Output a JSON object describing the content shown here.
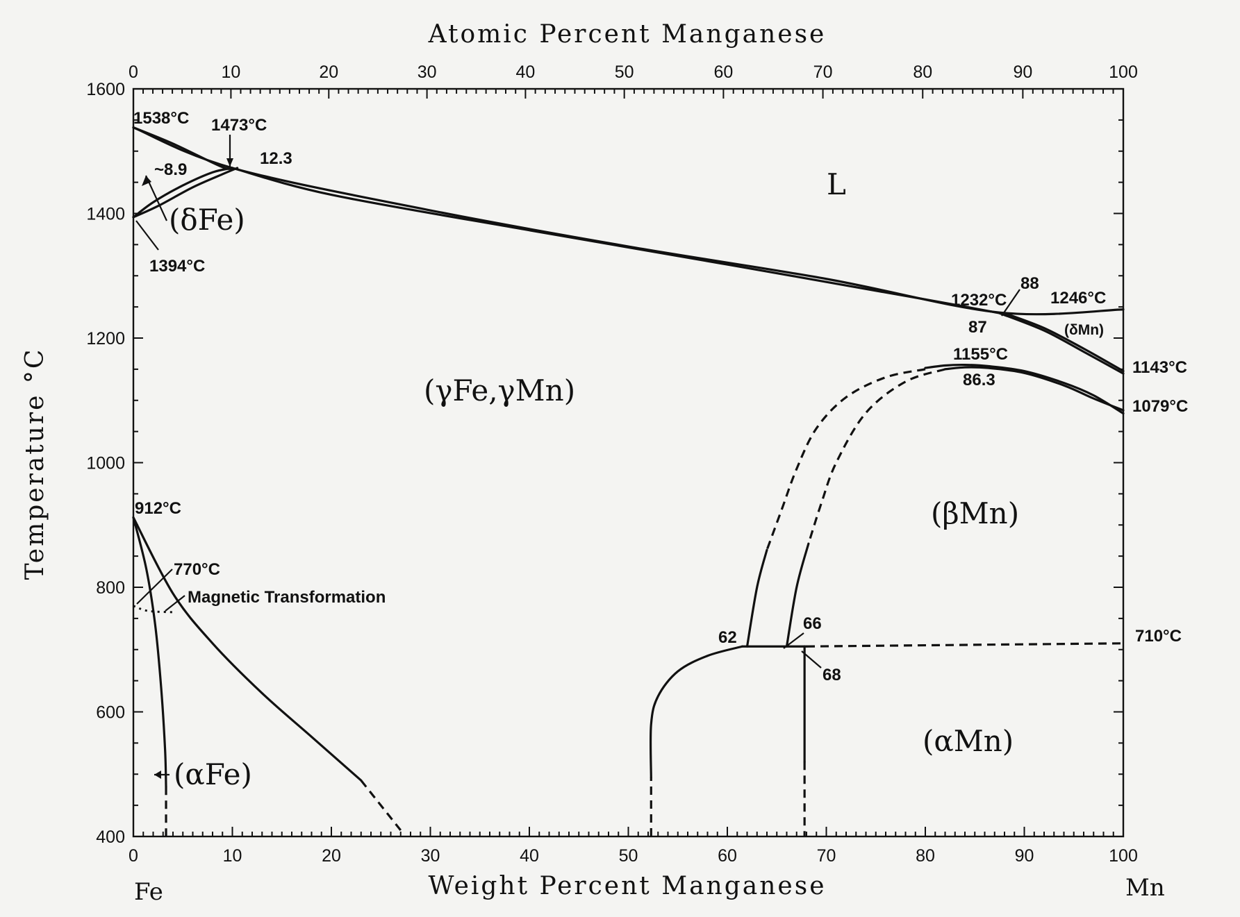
{
  "chart_data": {
    "type": "line",
    "title": "",
    "xlabel": "Weight Percent Manganese",
    "x2label": "Atomic Percent Manganese",
    "ylabel": "Temperature °C",
    "xlim": [
      0,
      100
    ],
    "ylim": [
      400,
      1600
    ],
    "x_ticks": [
      0,
      10,
      20,
      30,
      40,
      50,
      60,
      70,
      80,
      90,
      100
    ],
    "x2_ticks": [
      0,
      10,
      20,
      30,
      40,
      50,
      60,
      70,
      80,
      90,
      100
    ],
    "y_ticks": [
      400,
      600,
      800,
      1000,
      1200,
      1400,
      1600
    ],
    "left_element": "Fe",
    "right_element": "Mn",
    "phase_labels": [
      {
        "id": "liquid",
        "text": "L",
        "x": 71,
        "y": 1440
      },
      {
        "id": "delta-fe",
        "text": "(δFe)",
        "x": 7,
        "y": 1385
      },
      {
        "id": "gamma",
        "text": "(γFe,γMn)",
        "x": 37,
        "y": 1110
      },
      {
        "id": "beta-mn",
        "text": "(βMn)",
        "x": 85,
        "y": 905
      },
      {
        "id": "alpha-mn",
        "text": "(αMn)",
        "x": 84,
        "y": 545
      },
      {
        "id": "alpha-fe",
        "text": "(αFe)",
        "x": 8,
        "y": 500
      },
      {
        "id": "delta-mn",
        "text": "(δMn)",
        "x": 96.5,
        "y": 1212
      }
    ],
    "annotations": [
      {
        "id": "t1538",
        "text": "1538°C"
      },
      {
        "id": "t1473",
        "text": "1473°C"
      },
      {
        "id": "c12-3",
        "text": "12.3"
      },
      {
        "id": "c8-9",
        "text": "~8.9"
      },
      {
        "id": "t1394",
        "text": "1394°C"
      },
      {
        "id": "t1232",
        "text": "1232°C"
      },
      {
        "id": "c88",
        "text": "88"
      },
      {
        "id": "t1246",
        "text": "1246°C"
      },
      {
        "id": "c87",
        "text": "87"
      },
      {
        "id": "t1155",
        "text": "1155°C"
      },
      {
        "id": "c86-3",
        "text": "86.3"
      },
      {
        "id": "t1143",
        "text": "1143°C"
      },
      {
        "id": "t1079",
        "text": "1079°C"
      },
      {
        "id": "t912",
        "text": "912°C"
      },
      {
        "id": "t770",
        "text": "770°C"
      },
      {
        "id": "magnetic",
        "text": "Magnetic Transformation"
      },
      {
        "id": "c62",
        "text": "62"
      },
      {
        "id": "c66",
        "text": "66"
      },
      {
        "id": "c68",
        "text": "68"
      },
      {
        "id": "t710",
        "text": "710°C"
      }
    ],
    "series": [
      {
        "id": "liquidus",
        "style": "solid",
        "points": [
          [
            0,
            1538
          ],
          [
            10,
            1473
          ],
          [
            30,
            1405
          ],
          [
            50,
            1347
          ],
          [
            70,
            1295
          ],
          [
            87.5,
            1241
          ],
          [
            100,
            1246
          ]
        ]
      },
      {
        "id": "gamma-solidus",
        "style": "solid",
        "points": [
          [
            10,
            1473
          ],
          [
            20,
            1430
          ],
          [
            40,
            1373
          ],
          [
            60,
            1318
          ],
          [
            80,
            1262
          ],
          [
            87.5,
            1240
          ]
        ]
      },
      {
        "id": "delta-fe-liquidus-side",
        "style": "solid",
        "points": [
          [
            0,
            1538
          ],
          [
            4,
            1512
          ],
          [
            8.9,
            1475
          ],
          [
            10,
            1473
          ]
        ]
      },
      {
        "id": "delta-fe-solvus-upper",
        "style": "solid",
        "points": [
          [
            0,
            1394
          ],
          [
            2,
            1418
          ],
          [
            5,
            1445
          ],
          [
            8,
            1466
          ],
          [
            10,
            1473
          ]
        ]
      },
      {
        "id": "delta-fe-solvus-lower",
        "style": "solid",
        "points": [
          [
            0,
            1394
          ],
          [
            2.5,
            1412
          ],
          [
            6,
            1442
          ],
          [
            9,
            1463
          ],
          [
            10.5,
            1473
          ]
        ]
      },
      {
        "id": "delta-mn-solvus",
        "style": "solid",
        "points": [
          [
            87.5,
            1240
          ],
          [
            92,
            1212
          ],
          [
            96,
            1178
          ],
          [
            100,
            1143
          ]
        ]
      },
      {
        "id": "delta-mn-solvus-2",
        "style": "solid",
        "points": [
          [
            88,
            1240
          ],
          [
            92,
            1216
          ],
          [
            96,
            1183
          ],
          [
            100,
            1147
          ]
        ]
      },
      {
        "id": "beta-dome-upper",
        "style": "solid",
        "points": [
          [
            80,
            1152
          ],
          [
            82,
            1156
          ],
          [
            84,
            1157
          ],
          [
            86.3,
            1155
          ],
          [
            90,
            1147
          ],
          [
            94,
            1128
          ],
          [
            97,
            1108
          ],
          [
            100,
            1079
          ]
        ]
      },
      {
        "id": "beta-dome-lower",
        "style": "solid",
        "points": [
          [
            82,
            1150
          ],
          [
            84,
            1153
          ],
          [
            86.3,
            1152
          ],
          [
            90,
            1144
          ],
          [
            94,
            1124
          ],
          [
            97,
            1103
          ],
          [
            100,
            1084
          ]
        ]
      },
      {
        "id": "beta-boundary-left-dashed",
        "style": "dashed",
        "points": [
          [
            80,
            1150
          ],
          [
            76,
            1137
          ],
          [
            72,
            1105
          ],
          [
            69,
            1055
          ],
          [
            67,
            990
          ],
          [
            65.5,
            925
          ],
          [
            64,
            860
          ]
        ]
      },
      {
        "id": "beta-boundary-left",
        "style": "solid",
        "points": [
          [
            64,
            860
          ],
          [
            63,
            800
          ],
          [
            62,
            705
          ]
        ]
      },
      {
        "id": "beta-boundary-right-dashed",
        "style": "dashed",
        "points": [
          [
            82,
            1150
          ],
          [
            78,
            1130
          ],
          [
            74,
            1080
          ],
          [
            71,
            1000
          ],
          [
            69.5,
            935
          ],
          [
            68.2,
            870
          ]
        ]
      },
      {
        "id": "beta-boundary-right",
        "style": "solid",
        "points": [
          [
            68.2,
            870
          ],
          [
            67,
            800
          ],
          [
            66,
            705
          ]
        ]
      },
      {
        "id": "eutectoid-710",
        "style": "solid",
        "points": [
          [
            61.5,
            705
          ],
          [
            68,
            705
          ]
        ]
      },
      {
        "id": "alpha-mn-wavy",
        "style": "dashed",
        "points": [
          [
            68,
            705
          ],
          [
            100,
            710
          ]
        ]
      },
      {
        "id": "alpha-mn-solvus-left",
        "style": "solid",
        "points": [
          [
            52.3,
            495
          ],
          [
            52.3,
            580
          ],
          [
            53,
            625
          ],
          [
            55,
            665
          ],
          [
            58,
            690
          ],
          [
            61.5,
            705
          ]
        ]
      },
      {
        "id": "alpha-mn-solvus-left-dashed",
        "style": "dashed",
        "points": [
          [
            52.3,
            400
          ],
          [
            52.3,
            495
          ]
        ]
      },
      {
        "id": "alpha-mn-right",
        "style": "solid",
        "points": [
          [
            67.8,
            705
          ],
          [
            67.8,
            520
          ]
        ]
      },
      {
        "id": "alpha-mn-right-dashed",
        "style": "dashed",
        "points": [
          [
            67.8,
            520
          ],
          [
            67.8,
            400
          ]
        ]
      },
      {
        "id": "alpha-fe-solvus",
        "style": "solid",
        "points": [
          [
            0,
            912
          ],
          [
            1.3,
            830
          ],
          [
            2.2,
            740
          ],
          [
            2.8,
            640
          ],
          [
            3.2,
            540
          ],
          [
            3.3,
            480
          ]
        ]
      },
      {
        "id": "alpha-fe-solvus-dashed",
        "style": "dashed",
        "points": [
          [
            3.3,
            480
          ],
          [
            3.3,
            400
          ]
        ]
      },
      {
        "id": "gamma-alpha-boundary",
        "style": "solid",
        "points": [
          [
            0,
            912
          ],
          [
            4,
            790
          ],
          [
            8,
            710
          ],
          [
            13,
            630
          ],
          [
            18,
            560
          ],
          [
            23,
            490
          ]
        ]
      },
      {
        "id": "gamma-alpha-boundary-dashed",
        "style": "dashed",
        "points": [
          [
            23,
            490
          ],
          [
            25,
            450
          ],
          [
            27,
            410
          ]
        ]
      },
      {
        "id": "magnetic-transformation",
        "style": "dotted",
        "points": [
          [
            0,
            770
          ],
          [
            1.5,
            762
          ],
          [
            4,
            760
          ]
        ]
      }
    ]
  }
}
